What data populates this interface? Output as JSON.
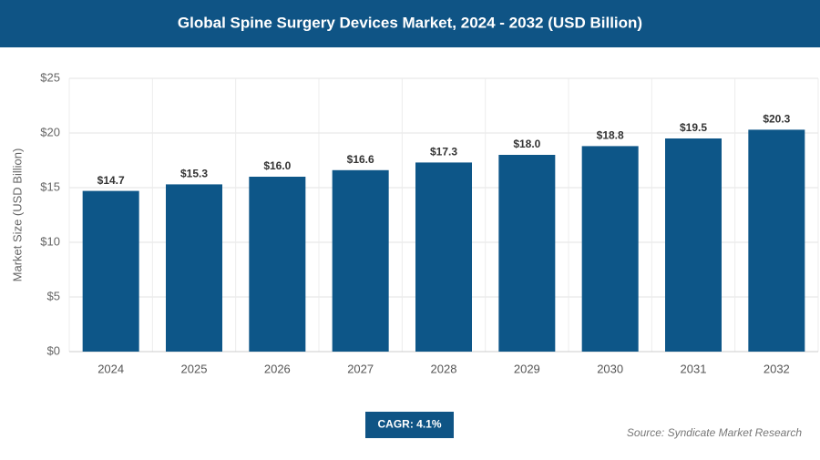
{
  "chart_data": {
    "type": "bar",
    "title": "Global Spine Surgery Devices Market, 2024 - 2032 (USD Billion)",
    "y_label": "Market Size (USD Billion)",
    "categories": [
      "2024",
      "2025",
      "2026",
      "2027",
      "2028",
      "2029",
      "2030",
      "2031",
      "2032"
    ],
    "values": [
      14.7,
      15.3,
      16.0,
      16.6,
      17.3,
      18.0,
      18.8,
      19.5,
      20.3
    ],
    "value_labels": [
      "$14.7",
      "$15.3",
      "$16.0",
      "$16.6",
      "$17.3",
      "$18.0",
      "$18.8",
      "$19.5",
      "$20.3"
    ],
    "color": "#0d5688",
    "ylim": [
      0,
      25
    ],
    "yticks": [
      {
        "value": 0,
        "label": "$0"
      },
      {
        "value": 5,
        "label": "$5"
      },
      {
        "value": 10,
        "label": "$10"
      },
      {
        "value": 15,
        "label": "$15"
      },
      {
        "value": 20,
        "label": "$20"
      },
      {
        "value": 25,
        "label": "$25"
      }
    ],
    "grid": true,
    "cagr": "CAGR: 4.1%",
    "source": "Source: Syndicate Market Research"
  }
}
